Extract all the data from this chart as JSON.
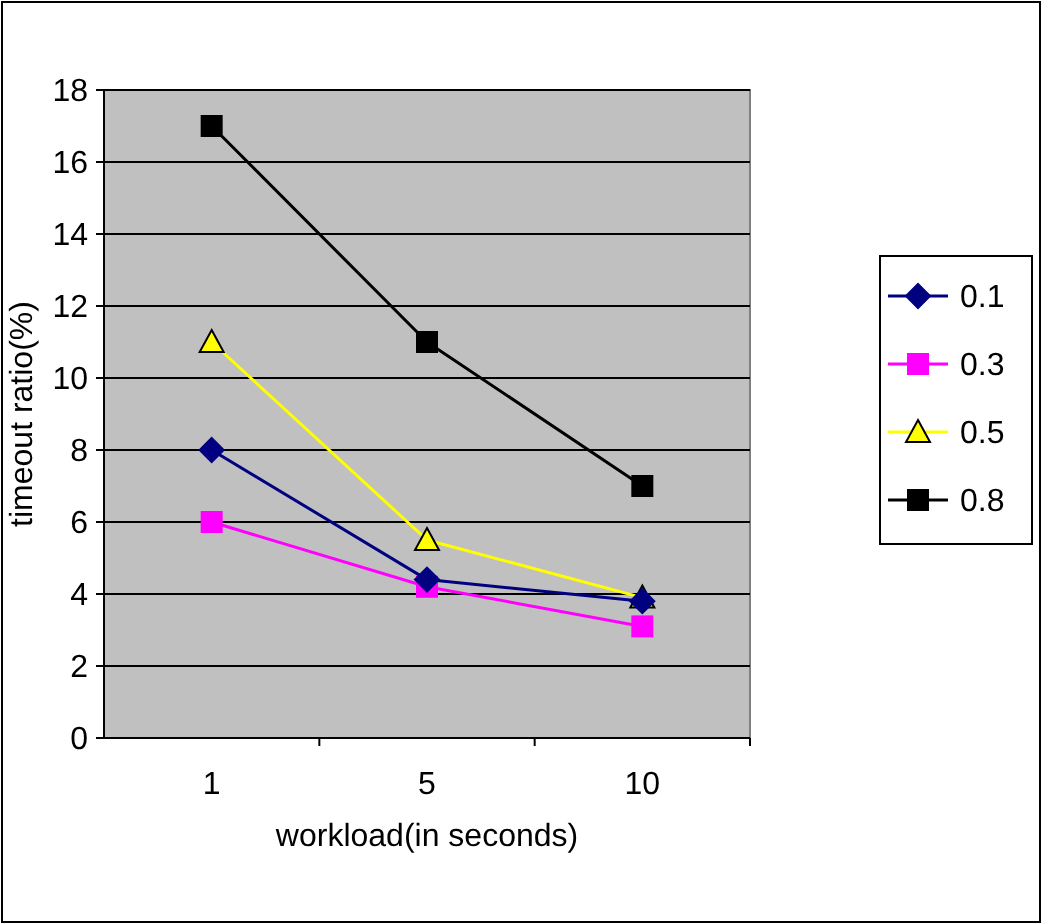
{
  "chart_data": {
    "type": "line",
    "xlabel": "workload(in seconds)",
    "ylabel": "timeout ratio(%)",
    "categories": [
      "1",
      "5",
      "10"
    ],
    "ylim": [
      0,
      18
    ],
    "yticks": [
      0,
      2,
      4,
      6,
      8,
      10,
      12,
      14,
      16,
      18
    ],
    "grid": "y",
    "legend": "right",
    "series": [
      {
        "name": "0.1",
        "color": "#000080",
        "marker": "diamond",
        "values": [
          8,
          4.4,
          3.8
        ]
      },
      {
        "name": "0.3",
        "color": "#ff00ff",
        "marker": "square",
        "values": [
          6,
          4.2,
          3.1
        ]
      },
      {
        "name": "0.5",
        "color": "#ffff00",
        "marker": "triangle",
        "values": [
          11,
          5.5,
          3.9
        ]
      },
      {
        "name": "0.8",
        "color": "#000000",
        "marker": "square",
        "values": [
          17,
          11,
          7
        ]
      }
    ]
  }
}
